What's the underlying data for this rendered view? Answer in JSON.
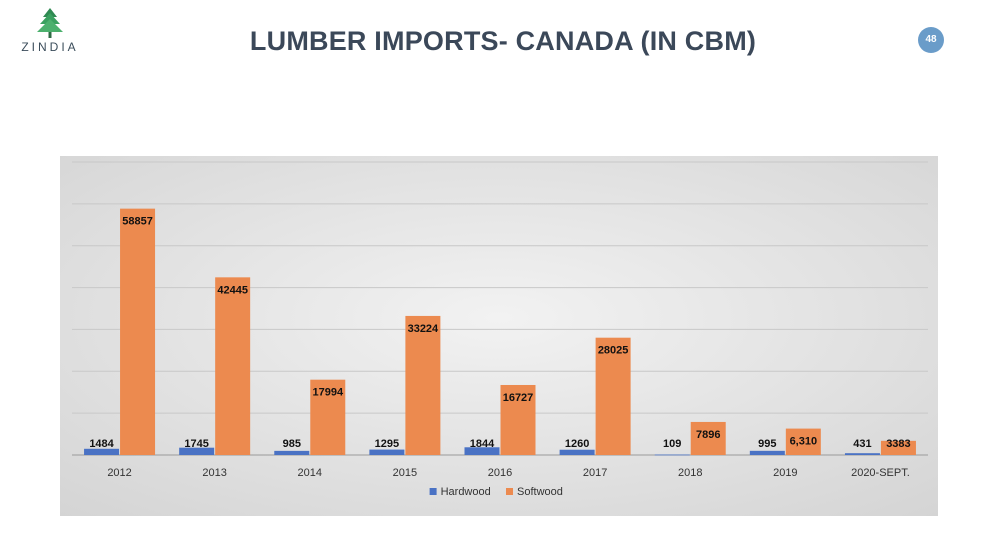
{
  "brand": {
    "logo_text": "ZINDIA",
    "logo_icon": "pine-tree-icon"
  },
  "slide": {
    "title": "LUMBER IMPORTS- CANADA (IN CBM)",
    "page_number": "48"
  },
  "colors": {
    "hardwood": "#4a72c4",
    "softwood": "#ec8a4f",
    "title": "#3b4859",
    "badge": "#6a9cc9"
  },
  "chart_data": {
    "type": "bar",
    "title": "",
    "xlabel": "",
    "ylabel": "",
    "categories": [
      "2012",
      "2013",
      "2014",
      "2015",
      "2016",
      "2017",
      "2018",
      "2019",
      "2020-SEPT."
    ],
    "series": [
      {
        "name": "Hardwood",
        "values": [
          1484,
          1745,
          985,
          1295,
          1844,
          1260,
          109,
          995,
          431
        ],
        "labels": [
          "1484",
          "1745",
          "985",
          "1295",
          "1844",
          "1260",
          "109",
          "995",
          "431"
        ]
      },
      {
        "name": "Softwood",
        "values": [
          58857,
          42445,
          17994,
          33224,
          16727,
          28025,
          7896,
          6310,
          3383
        ],
        "labels": [
          "58857",
          "42445",
          "17994",
          "33224",
          "16727",
          "28025",
          "7896",
          "6,310",
          "3383"
        ]
      }
    ],
    "ylim": [
      0,
      70000
    ],
    "y_gridline_step": 10000,
    "grid": true,
    "y_axis_labels_visible": false,
    "legend": "bottom-center"
  }
}
